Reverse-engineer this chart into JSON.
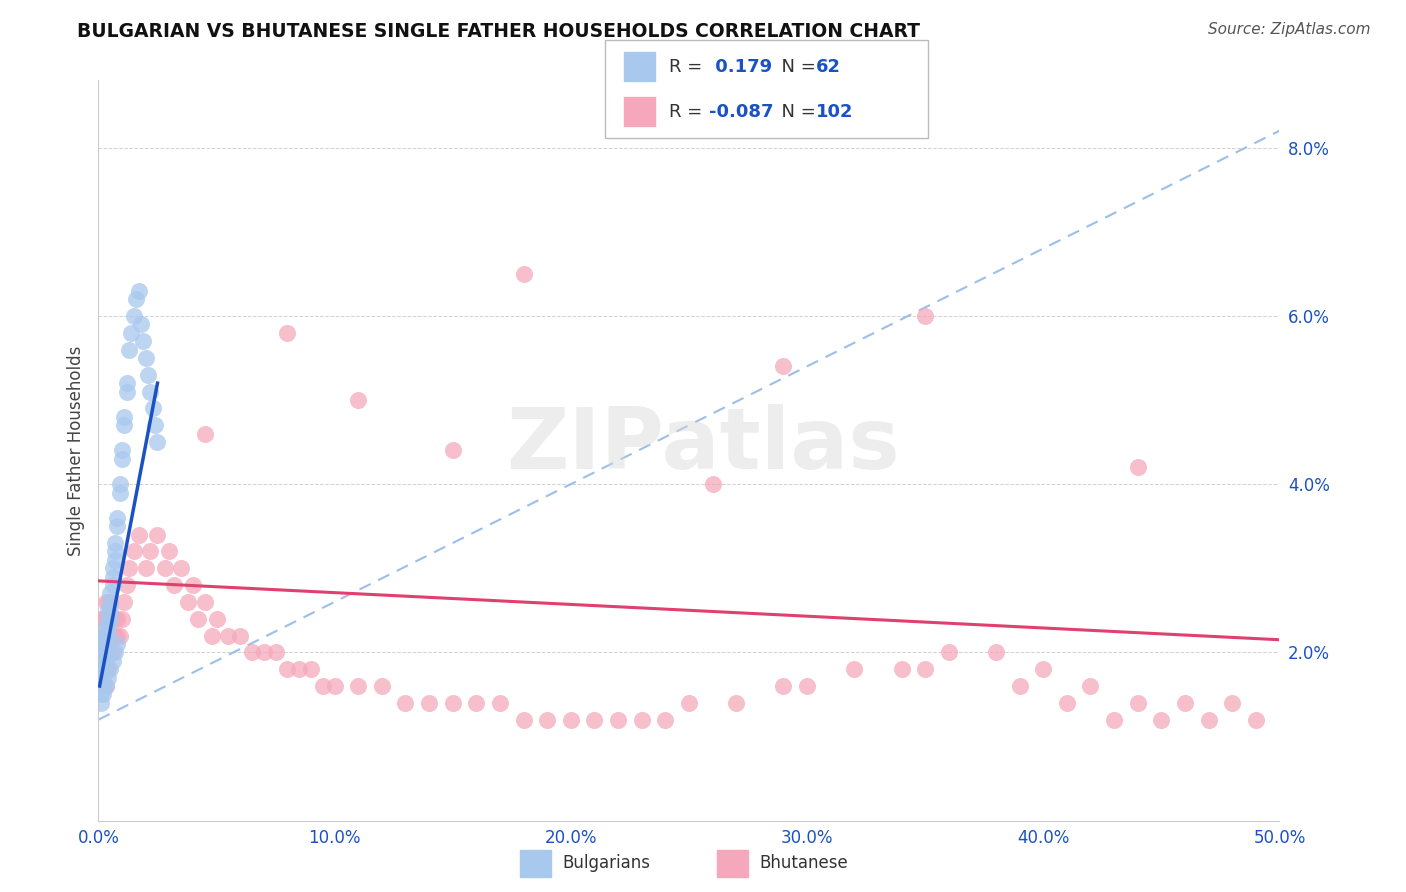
{
  "title": "BULGARIAN VS BHUTANESE SINGLE FATHER HOUSEHOLDS CORRELATION CHART",
  "source": "Source: ZipAtlas.com",
  "ylabel": "Single Father Households",
  "xlim": [
    0.0,
    0.5
  ],
  "ylim": [
    0.0,
    0.088
  ],
  "xticks": [
    0.0,
    0.1,
    0.2,
    0.3,
    0.4,
    0.5
  ],
  "xtick_labels": [
    "0.0%",
    "10.0%",
    "20.0%",
    "30.0%",
    "40.0%",
    "50.0%"
  ],
  "yticks": [
    0.02,
    0.04,
    0.06,
    0.08
  ],
  "ytick_labels": [
    "2.0%",
    "4.0%",
    "6.0%",
    "8.0%"
  ],
  "bulgarian_R": 0.179,
  "bulgarian_N": 62,
  "bhutanese_R": -0.087,
  "bhutanese_N": 102,
  "bulgarian_color": "#a8c8ee",
  "bhutanese_color": "#f5a8bc",
  "bulgarian_trend_color": "#1a52c4",
  "bhutanese_trend_color": "#e04070",
  "dashed_line_color": "#90b8e8",
  "blue_text": "#1a52c4",
  "bulgarian_x": [
    0.001,
    0.001,
    0.001,
    0.001,
    0.001,
    0.002,
    0.002,
    0.002,
    0.002,
    0.002,
    0.002,
    0.002,
    0.003,
    0.003,
    0.003,
    0.003,
    0.003,
    0.004,
    0.004,
    0.004,
    0.004,
    0.005,
    0.005,
    0.005,
    0.005,
    0.006,
    0.006,
    0.006,
    0.007,
    0.007,
    0.007,
    0.008,
    0.008,
    0.009,
    0.009,
    0.01,
    0.01,
    0.011,
    0.011,
    0.012,
    0.012,
    0.013,
    0.014,
    0.015,
    0.016,
    0.017,
    0.018,
    0.019,
    0.02,
    0.021,
    0.022,
    0.023,
    0.024,
    0.025,
    0.001,
    0.002,
    0.003,
    0.004,
    0.005,
    0.006,
    0.007,
    0.008
  ],
  "bulgarian_y": [
    0.02,
    0.018,
    0.017,
    0.016,
    0.015,
    0.022,
    0.021,
    0.02,
    0.019,
    0.018,
    0.017,
    0.016,
    0.023,
    0.022,
    0.021,
    0.02,
    0.019,
    0.025,
    0.024,
    0.023,
    0.022,
    0.027,
    0.026,
    0.025,
    0.024,
    0.03,
    0.029,
    0.028,
    0.033,
    0.032,
    0.031,
    0.036,
    0.035,
    0.04,
    0.039,
    0.044,
    0.043,
    0.048,
    0.047,
    0.052,
    0.051,
    0.056,
    0.058,
    0.06,
    0.062,
    0.063,
    0.059,
    0.057,
    0.055,
    0.053,
    0.051,
    0.049,
    0.047,
    0.045,
    0.014,
    0.015,
    0.016,
    0.017,
    0.018,
    0.019,
    0.02,
    0.021
  ],
  "bhutanese_x": [
    0.001,
    0.001,
    0.001,
    0.002,
    0.002,
    0.002,
    0.002,
    0.003,
    0.003,
    0.003,
    0.003,
    0.003,
    0.003,
    0.004,
    0.004,
    0.004,
    0.004,
    0.004,
    0.005,
    0.005,
    0.005,
    0.005,
    0.006,
    0.006,
    0.006,
    0.007,
    0.007,
    0.008,
    0.008,
    0.009,
    0.01,
    0.011,
    0.012,
    0.013,
    0.015,
    0.017,
    0.02,
    0.022,
    0.025,
    0.028,
    0.03,
    0.032,
    0.035,
    0.038,
    0.04,
    0.042,
    0.045,
    0.048,
    0.05,
    0.055,
    0.06,
    0.065,
    0.07,
    0.075,
    0.08,
    0.085,
    0.09,
    0.095,
    0.1,
    0.11,
    0.12,
    0.13,
    0.14,
    0.15,
    0.16,
    0.17,
    0.18,
    0.19,
    0.2,
    0.21,
    0.22,
    0.23,
    0.24,
    0.25,
    0.27,
    0.29,
    0.3,
    0.32,
    0.34,
    0.35,
    0.36,
    0.38,
    0.39,
    0.4,
    0.41,
    0.42,
    0.43,
    0.44,
    0.45,
    0.46,
    0.47,
    0.48,
    0.49,
    0.045,
    0.11,
    0.15,
    0.29,
    0.18,
    0.35,
    0.08,
    0.26,
    0.44
  ],
  "bhutanese_y": [
    0.02,
    0.022,
    0.024,
    0.018,
    0.02,
    0.022,
    0.024,
    0.016,
    0.018,
    0.02,
    0.022,
    0.024,
    0.026,
    0.018,
    0.02,
    0.022,
    0.024,
    0.026,
    0.02,
    0.022,
    0.024,
    0.026,
    0.02,
    0.022,
    0.024,
    0.022,
    0.024,
    0.022,
    0.024,
    0.022,
    0.024,
    0.026,
    0.028,
    0.03,
    0.032,
    0.034,
    0.03,
    0.032,
    0.034,
    0.03,
    0.032,
    0.028,
    0.03,
    0.026,
    0.028,
    0.024,
    0.026,
    0.022,
    0.024,
    0.022,
    0.022,
    0.02,
    0.02,
    0.02,
    0.018,
    0.018,
    0.018,
    0.016,
    0.016,
    0.016,
    0.016,
    0.014,
    0.014,
    0.014,
    0.014,
    0.014,
    0.012,
    0.012,
    0.012,
    0.012,
    0.012,
    0.012,
    0.012,
    0.014,
    0.014,
    0.016,
    0.016,
    0.018,
    0.018,
    0.018,
    0.02,
    0.02,
    0.016,
    0.018,
    0.014,
    0.016,
    0.012,
    0.014,
    0.012,
    0.014,
    0.012,
    0.014,
    0.012,
    0.046,
    0.05,
    0.044,
    0.054,
    0.065,
    0.06,
    0.058,
    0.04,
    0.042
  ],
  "bhu_trend_x": [
    0.0,
    0.5
  ],
  "bhu_trend_y": [
    0.0285,
    0.0215
  ],
  "bul_trend_x": [
    0.0005,
    0.025
  ],
  "bul_trend_y": [
    0.016,
    0.052
  ]
}
